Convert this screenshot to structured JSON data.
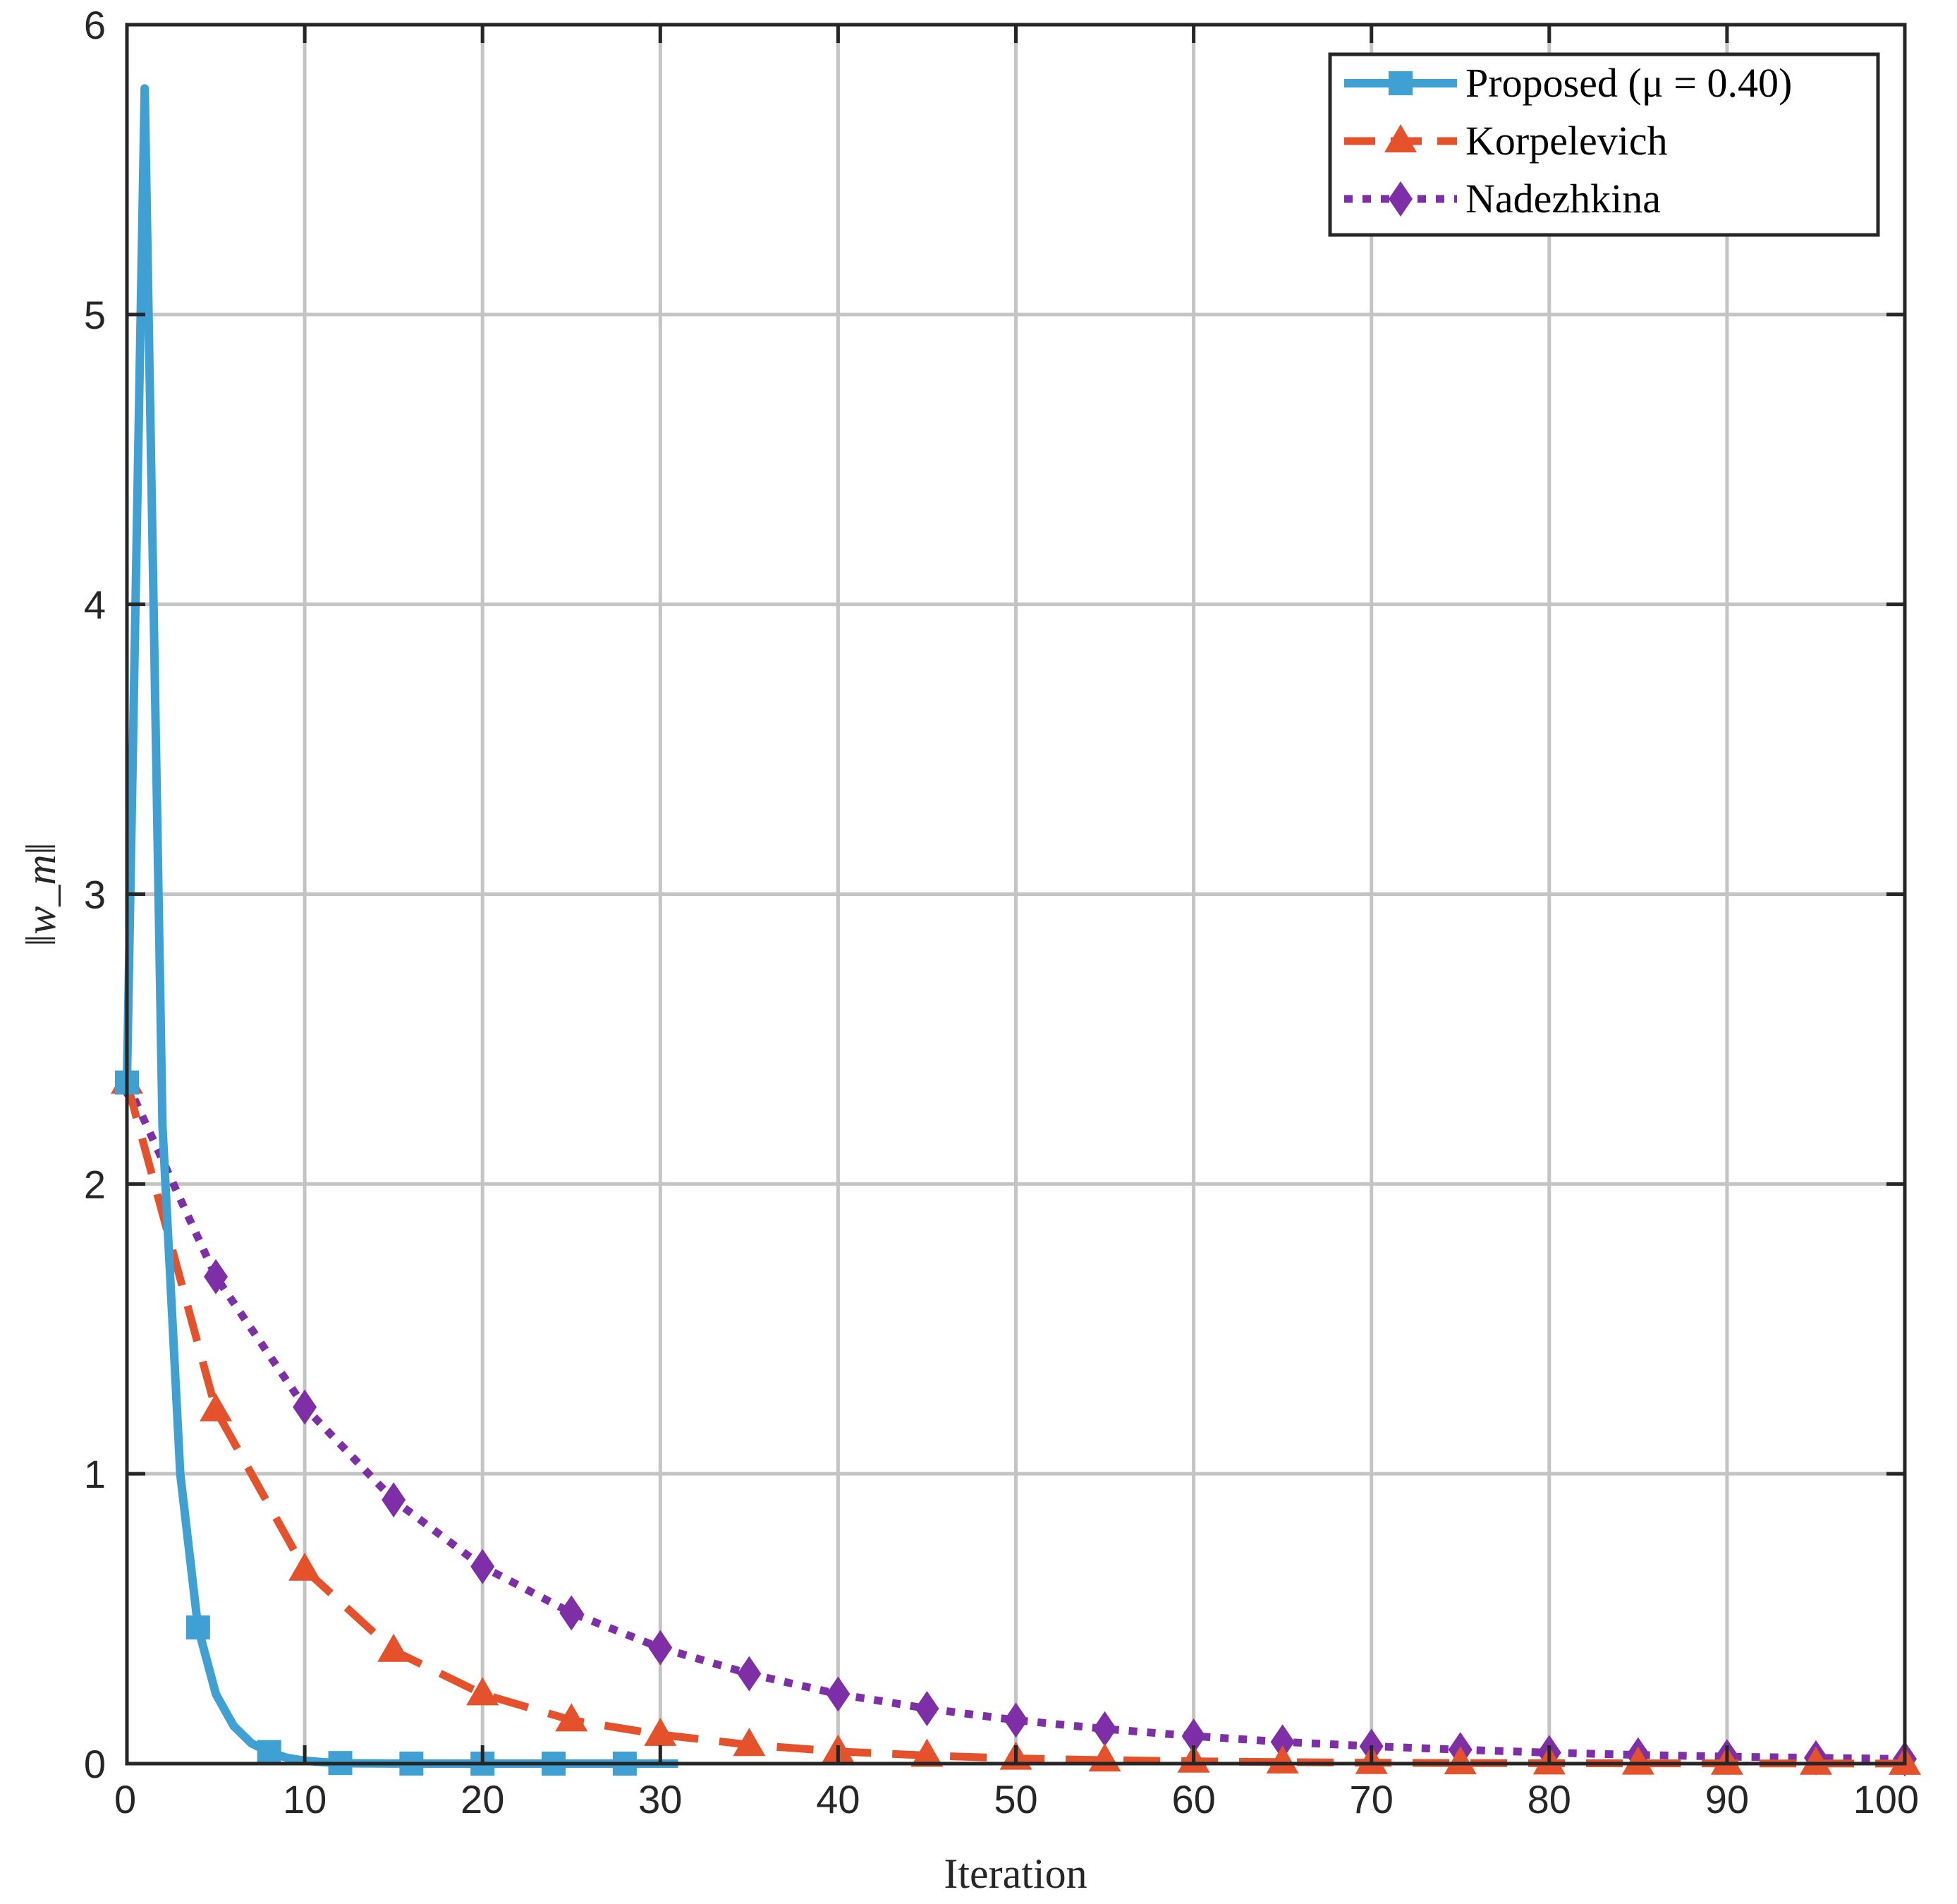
{
  "chart_data": {
    "type": "line",
    "title": "",
    "xlabel": "Iteration",
    "ylabel": "‖w_m‖",
    "xlim": [
      0,
      100
    ],
    "ylim": [
      0,
      6
    ],
    "xticks": [
      0,
      10,
      20,
      30,
      40,
      50,
      60,
      70,
      80,
      90,
      100
    ],
    "yticks": [
      0,
      1,
      2,
      3,
      4,
      5,
      6
    ],
    "grid": true,
    "legend_position": "top-right",
    "series": [
      {
        "name": "Proposed (μ = 0.40)",
        "color": "#3ea0d3",
        "line_style": "solid",
        "marker": "square",
        "x": [
          0,
          1,
          2,
          3,
          4,
          5,
          6,
          7,
          8,
          9,
          10,
          11,
          12,
          13,
          14,
          15,
          16,
          17,
          18,
          19,
          20,
          21,
          22,
          23,
          24,
          25,
          26,
          27,
          28,
          29,
          30,
          31
        ],
        "y": [
          2.35,
          5.78,
          2.2,
          1.0,
          0.47,
          0.24,
          0.13,
          0.07,
          0.04,
          0.02,
          0.01,
          0.005,
          0.002,
          0.001,
          0.0005,
          0.0003,
          0.0002,
          0.0001,
          0.0001,
          0,
          0,
          0,
          0,
          0,
          0,
          0,
          0,
          0,
          0,
          0,
          0,
          0
        ],
        "marker_x": [
          0,
          4,
          8,
          12,
          16,
          20,
          24,
          28
        ]
      },
      {
        "name": "Korpelevich",
        "color": "#e5512a",
        "line_style": "dashed",
        "marker": "triangle",
        "x": [
          0,
          5,
          10,
          15,
          20,
          25,
          30,
          35,
          40,
          45,
          50,
          55,
          60,
          65,
          70,
          75,
          80,
          85,
          90,
          95,
          100
        ],
        "y": [
          2.35,
          1.22,
          0.67,
          0.39,
          0.24,
          0.15,
          0.1,
          0.065,
          0.042,
          0.028,
          0.018,
          0.012,
          0.008,
          0.005,
          0.003,
          0.002,
          0.0015,
          0.001,
          0.0007,
          0.0005,
          0.0003
        ]
      },
      {
        "name": "Nadezhkina",
        "color": "#7e2fa8",
        "line_style": "dotted",
        "marker": "diamond",
        "x": [
          0,
          5,
          10,
          15,
          20,
          25,
          30,
          35,
          40,
          45,
          50,
          55,
          60,
          65,
          70,
          75,
          80,
          85,
          90,
          95,
          100
        ],
        "y": [
          2.35,
          1.68,
          1.23,
          0.91,
          0.68,
          0.52,
          0.4,
          0.31,
          0.24,
          0.19,
          0.15,
          0.12,
          0.095,
          0.075,
          0.06,
          0.048,
          0.038,
          0.03,
          0.024,
          0.02,
          0.016
        ]
      }
    ]
  }
}
